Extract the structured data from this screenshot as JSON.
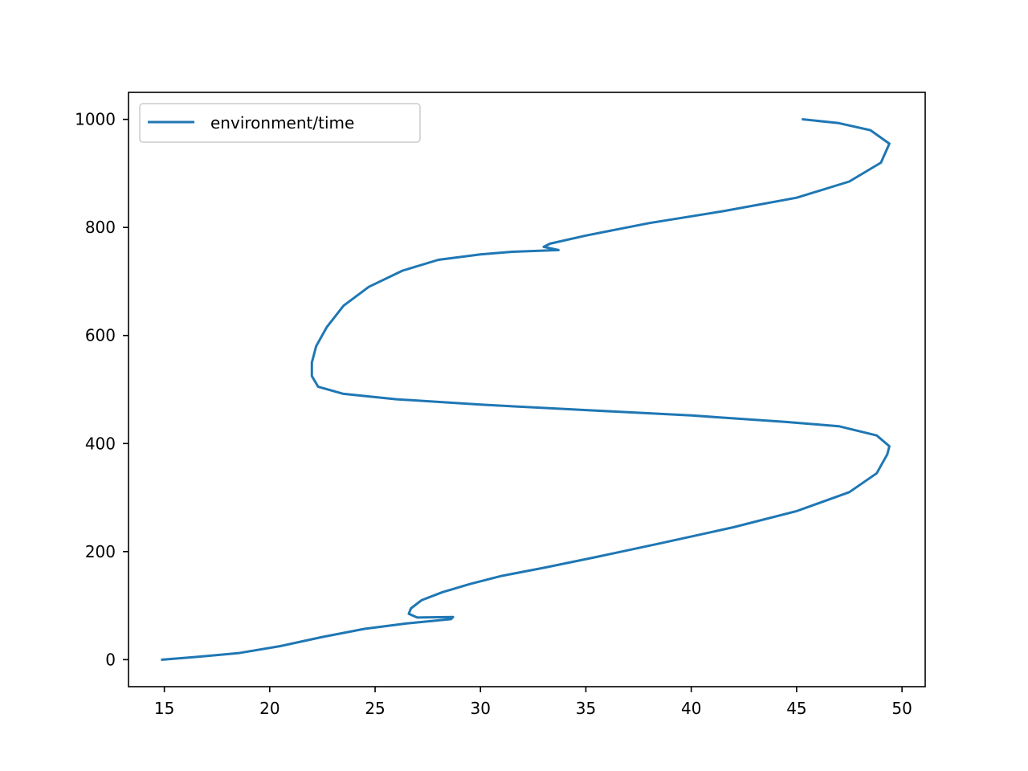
{
  "chart_data": {
    "type": "line",
    "title": "",
    "xlabel": "",
    "ylabel": "",
    "xlim": [
      13.3,
      51.1
    ],
    "ylim": [
      -50,
      1050
    ],
    "xticks": [
      15,
      20,
      25,
      30,
      35,
      40,
      45,
      50
    ],
    "yticks": [
      0,
      200,
      400,
      600,
      800,
      1000
    ],
    "grid": false,
    "legend": {
      "position": "top-left"
    },
    "colors": {
      "series": "#1f77b4",
      "axes": "#000000",
      "background": "#ffffff",
      "legend_border": "#cccccc"
    },
    "series": [
      {
        "name": "environment/time",
        "points": [
          [
            14.9,
            0
          ],
          [
            16.5,
            5
          ],
          [
            18.5,
            12
          ],
          [
            20.5,
            25
          ],
          [
            22.5,
            42
          ],
          [
            24.5,
            57
          ],
          [
            26.5,
            67
          ],
          [
            28.6,
            75
          ],
          [
            28.7,
            79
          ],
          [
            27.0,
            78
          ],
          [
            26.6,
            85
          ],
          [
            26.7,
            95
          ],
          [
            27.2,
            110
          ],
          [
            28.2,
            125
          ],
          [
            29.5,
            140
          ],
          [
            31.0,
            155
          ],
          [
            33.0,
            170
          ],
          [
            35.5,
            190
          ],
          [
            38.5,
            215
          ],
          [
            42.0,
            245
          ],
          [
            45.0,
            275
          ],
          [
            47.5,
            310
          ],
          [
            48.8,
            345
          ],
          [
            49.3,
            380
          ],
          [
            49.4,
            395
          ],
          [
            48.8,
            415
          ],
          [
            47.0,
            432
          ],
          [
            44.5,
            440
          ],
          [
            40.0,
            452
          ],
          [
            35.0,
            462
          ],
          [
            30.0,
            472
          ],
          [
            26.0,
            482
          ],
          [
            23.5,
            492
          ],
          [
            22.3,
            505
          ],
          [
            22.0,
            525
          ],
          [
            22.0,
            550
          ],
          [
            22.2,
            580
          ],
          [
            22.7,
            615
          ],
          [
            23.5,
            655
          ],
          [
            24.7,
            690
          ],
          [
            26.3,
            720
          ],
          [
            28.0,
            740
          ],
          [
            30.0,
            750
          ],
          [
            31.5,
            755
          ],
          [
            33.7,
            758
          ],
          [
            33.0,
            764
          ],
          [
            33.3,
            770
          ],
          [
            35.0,
            785
          ],
          [
            38.0,
            808
          ],
          [
            41.5,
            830
          ],
          [
            45.0,
            855
          ],
          [
            47.5,
            885
          ],
          [
            49.0,
            920
          ],
          [
            49.4,
            955
          ],
          [
            48.5,
            980
          ],
          [
            47.0,
            993
          ],
          [
            45.3,
            1000
          ]
        ]
      }
    ]
  }
}
